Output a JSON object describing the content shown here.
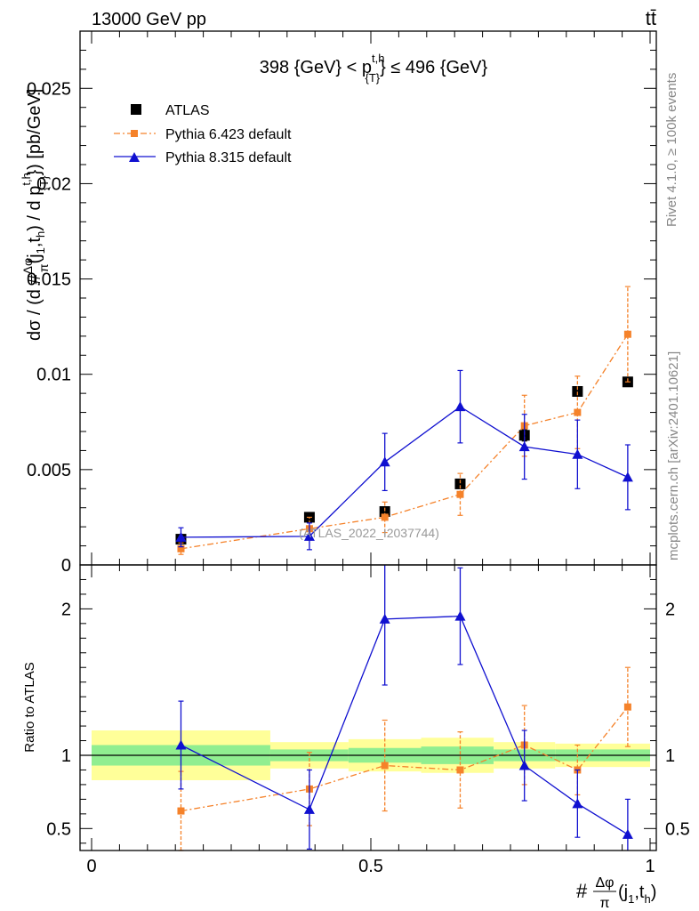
{
  "header": {
    "left": "13000 GeV pp",
    "right": "tt̄"
  },
  "side_labels": {
    "rivet": "Rivet 4.1.0, ≥ 100k events",
    "mcplots": "mcplots.cern.ch [arXiv:2401.10621]"
  },
  "chart_data": [
    {
      "panel": "main",
      "type": "scatter",
      "title": "398 {GeV} < p^{t,h}_{T} ≤ 496 {GeV}",
      "title_parts": {
        "pre": "398 {GeV} < p",
        "sup": "t,h",
        "sub": "{T}",
        "post": "} ≤ 496 {GeV}"
      },
      "ylabel": "dσ / (d #Δφ/π(j₁,tₕ) / d p^{t,h}_{T}) [pb/GeV]",
      "ylabel_parts": {
        "a": "dσ / (d #",
        "num": "Δφ",
        "den": "π",
        "b": "(j",
        "s1": "1",
        "c": ",t",
        "s2": "h",
        "d": ") / d p",
        "sup": "t,h",
        "sub": "{T}",
        "e": "}) [pb/GeV]"
      },
      "watermark": "(ATLAS_2022_I2037744)",
      "xlim": [
        0,
        1
      ],
      "ylim": [
        0,
        0.028
      ],
      "yticks": [
        0,
        0.005,
        0.01,
        0.015,
        0.02,
        0.025
      ],
      "ytick_labels": [
        "0",
        "0.005",
        "0.01",
        "0.015",
        "0.02",
        "0.025"
      ],
      "legend_position": "top-left",
      "series": [
        {
          "name": "ATLAS",
          "marker": "square",
          "color": "#000000",
          "x": [
            0.16,
            0.39,
            0.525,
            0.66,
            0.775,
            0.87,
            0.96
          ],
          "y": [
            0.00135,
            0.0025,
            0.0028,
            0.00425,
            0.0068,
            0.0091,
            0.0096
          ],
          "yerr": [
            0.0002,
            0.00015,
            0.00015,
            0.00015,
            0.0003,
            0.00025,
            0.00015
          ]
        },
        {
          "name": "Pythia 6.423 default",
          "marker": "square-small",
          "color": "#f5822a",
          "line": "dashdot",
          "x": [
            0.16,
            0.39,
            0.525,
            0.66,
            0.775,
            0.87,
            0.96
          ],
          "y": [
            0.00085,
            0.0019,
            0.0025,
            0.0037,
            0.0073,
            0.008,
            0.0121
          ],
          "yerr": [
            0.0003,
            0.0006,
            0.0008,
            0.0011,
            0.0016,
            0.0019,
            0.0025
          ]
        },
        {
          "name": "Pythia 8.315 default",
          "marker": "triangle",
          "color": "#1010d0",
          "line": "solid",
          "x": [
            0.16,
            0.39,
            0.525,
            0.66,
            0.775,
            0.87,
            0.96
          ],
          "y": [
            0.00145,
            0.0015,
            0.0054,
            0.0083,
            0.0062,
            0.0058,
            0.0046
          ],
          "yerr": [
            0.0005,
            0.0007,
            0.0015,
            0.0019,
            0.0017,
            0.0018,
            0.0017
          ]
        }
      ]
    },
    {
      "panel": "ratio",
      "type": "scatter",
      "ylabel": "Ratio to ATLAS",
      "xlabel": "#Δφ/π(j₁,tₕ)",
      "xlabel_parts": {
        "pre": "#",
        "num": "Δφ",
        "den": "π",
        "a": "(j",
        "s1": "1",
        "b": ",t",
        "s2": "h",
        "c": ")"
      },
      "xlim": [
        0,
        1
      ],
      "ylim": [
        0.35,
        2.3
      ],
      "yticks": [
        0.5,
        1,
        2
      ],
      "ytick_labels": [
        "0.5",
        "1",
        "2"
      ],
      "xticks": [
        0,
        0.5,
        1
      ],
      "xtick_labels": [
        "0",
        "0.5",
        "1"
      ],
      "bands": {
        "edges": [
          0,
          0.32,
          0.46,
          0.59,
          0.72,
          0.83,
          0.91,
          1.0
        ],
        "inner_lo": [
          0.93,
          0.96,
          0.95,
          0.94,
          0.96,
          0.96,
          0.96
        ],
        "inner_hi": [
          1.07,
          1.04,
          1.05,
          1.06,
          1.04,
          1.04,
          1.04
        ],
        "outer_lo": [
          0.83,
          0.91,
          0.89,
          0.88,
          0.91,
          0.92,
          0.92
        ],
        "outer_hi": [
          1.17,
          1.09,
          1.11,
          1.12,
          1.09,
          1.08,
          1.08
        ],
        "inner_color": "#90ee90",
        "outer_color": "#ffff99"
      },
      "series": [
        {
          "name": "Pythia 6.423 default",
          "color": "#f5822a",
          "line": "dashdot",
          "x": [
            0.16,
            0.39,
            0.525,
            0.66,
            0.775,
            0.87,
            0.96
          ],
          "y": [
            0.62,
            0.77,
            0.93,
            0.9,
            1.07,
            0.9,
            1.33
          ],
          "yerr": [
            0.27,
            0.25,
            0.31,
            0.26,
            0.27,
            0.17,
            0.27
          ]
        },
        {
          "name": "Pythia 8.315 default",
          "color": "#1010d0",
          "line": "solid",
          "x": [
            0.16,
            0.39,
            0.525,
            0.66,
            0.775,
            0.87,
            0.96
          ],
          "y": [
            1.07,
            0.63,
            1.93,
            1.95,
            0.93,
            0.67,
            0.46
          ],
          "yerr": [
            0.3,
            0.27,
            0.45,
            0.33,
            0.24,
            0.23,
            0.24
          ]
        }
      ]
    }
  ]
}
